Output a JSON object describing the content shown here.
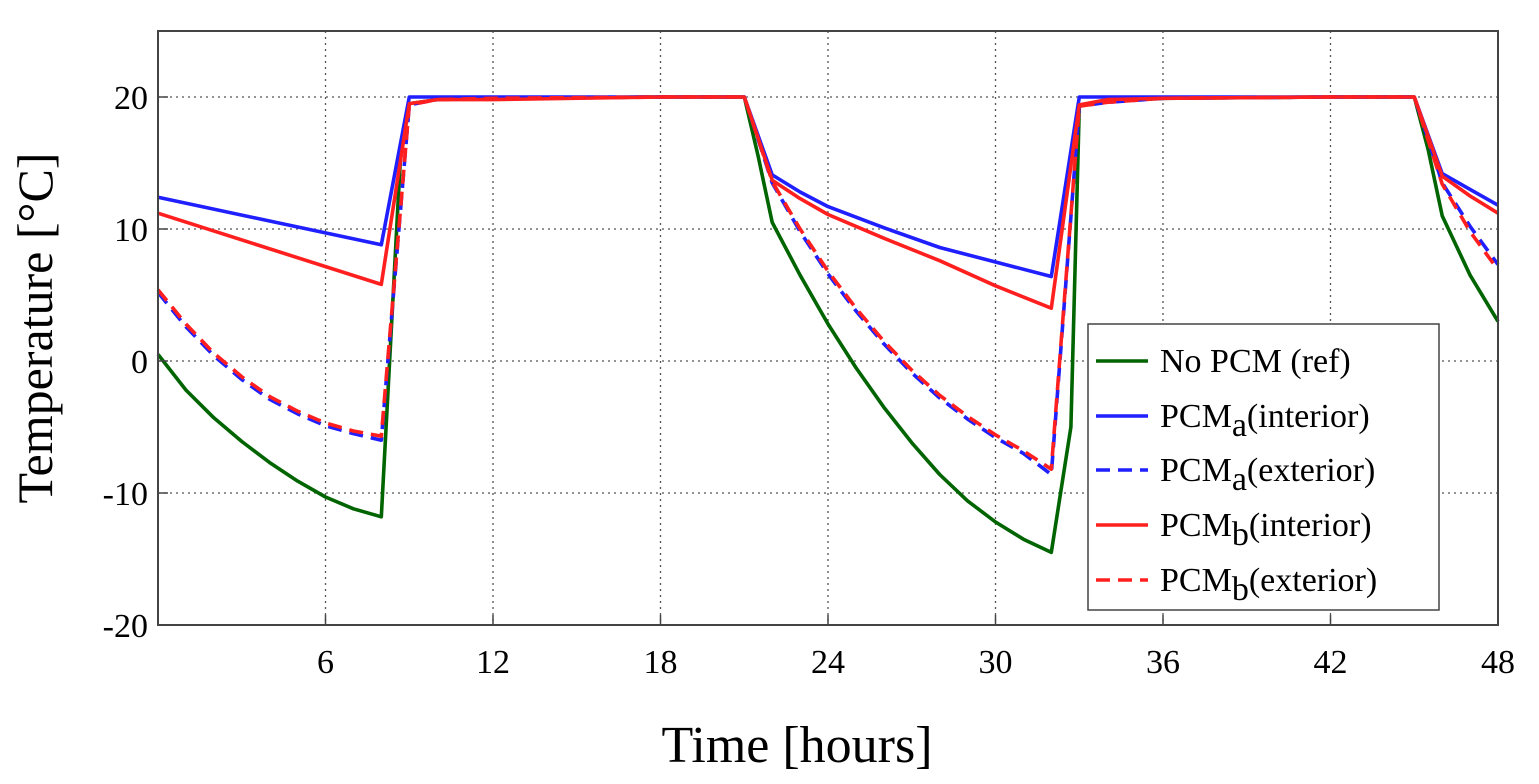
{
  "chart_data": {
    "type": "line",
    "title": "",
    "xlabel": "Time [hours]",
    "ylabel": "Temperature [°C]",
    "xlim": [
      0,
      48
    ],
    "ylim": [
      -20,
      25
    ],
    "xticks": [
      6,
      12,
      18,
      24,
      30,
      36,
      42,
      48
    ],
    "yticks": [
      -20,
      -10,
      0,
      10,
      20
    ],
    "grid": true,
    "legend_position": "lower-right",
    "series": [
      {
        "name": "No PCM (ref)",
        "legend_main": "No PCM (ref)",
        "legend_sub": "",
        "legend_rest": "",
        "color": "#006400",
        "dash": "solid",
        "points": [
          [
            0,
            0.5
          ],
          [
            1,
            -2.2
          ],
          [
            2,
            -4.3
          ],
          [
            3,
            -6.1
          ],
          [
            4,
            -7.7
          ],
          [
            5,
            -9.1
          ],
          [
            6,
            -10.3
          ],
          [
            7,
            -11.2
          ],
          [
            8,
            -11.8
          ],
          [
            8.7,
            16
          ],
          [
            9,
            19.5
          ],
          [
            10,
            19.8
          ],
          [
            12,
            19.9
          ],
          [
            18,
            20
          ],
          [
            21,
            20
          ],
          [
            21.5,
            15.5
          ],
          [
            22,
            10.5
          ],
          [
            23,
            6.5
          ],
          [
            24,
            2.8
          ],
          [
            25,
            -0.5
          ],
          [
            26,
            -3.5
          ],
          [
            27,
            -6.2
          ],
          [
            28,
            -8.6
          ],
          [
            29,
            -10.6
          ],
          [
            30,
            -12.2
          ],
          [
            31,
            -13.5
          ],
          [
            32,
            -14.5
          ],
          [
            32.7,
            -5
          ],
          [
            33,
            19.3
          ],
          [
            34,
            19.7
          ],
          [
            36,
            19.9
          ],
          [
            42,
            20
          ],
          [
            45,
            20
          ],
          [
            45.5,
            16
          ],
          [
            46,
            11
          ],
          [
            47,
            6.5
          ],
          [
            48,
            3
          ]
        ]
      },
      {
        "name": "PCMa (interior)",
        "legend_main": "PCM",
        "legend_sub": "a",
        "legend_rest": "(interior)",
        "color": "#1f1fff",
        "dash": "solid",
        "points": [
          [
            0,
            12.4
          ],
          [
            8,
            8.8
          ],
          [
            9,
            20
          ],
          [
            12,
            20
          ],
          [
            18,
            20
          ],
          [
            21,
            20
          ],
          [
            22,
            14.1
          ],
          [
            23,
            12.8
          ],
          [
            24,
            11.7
          ],
          [
            26,
            10.1
          ],
          [
            28,
            8.6
          ],
          [
            30,
            7.5
          ],
          [
            32,
            6.4
          ],
          [
            33,
            20
          ],
          [
            36,
            20
          ],
          [
            42,
            20
          ],
          [
            45,
            20
          ],
          [
            46,
            14.2
          ],
          [
            47,
            13
          ],
          [
            48,
            11.8
          ]
        ]
      },
      {
        "name": "PCMa (exterior)",
        "legend_main": "PCM",
        "legend_sub": "a",
        "legend_rest": "(exterior)",
        "color": "#1f1fff",
        "dash": "dashed",
        "points": [
          [
            0,
            5.2
          ],
          [
            1,
            2.6
          ],
          [
            2,
            0.4
          ],
          [
            3,
            -1.4
          ],
          [
            4,
            -2.9
          ],
          [
            5,
            -4.0
          ],
          [
            6,
            -4.9
          ],
          [
            7,
            -5.5
          ],
          [
            8,
            -6.0
          ],
          [
            9,
            19.4
          ],
          [
            10,
            19.8
          ],
          [
            12,
            19.9
          ],
          [
            18,
            20
          ],
          [
            21,
            20
          ],
          [
            22,
            13.5
          ],
          [
            23,
            9.8
          ],
          [
            24,
            6.6
          ],
          [
            25,
            3.8
          ],
          [
            26,
            1.3
          ],
          [
            27,
            -0.9
          ],
          [
            28,
            -2.8
          ],
          [
            29,
            -4.4
          ],
          [
            30,
            -5.8
          ],
          [
            31,
            -7.0
          ],
          [
            32,
            -8.6
          ],
          [
            33,
            19.3
          ],
          [
            34,
            19.6
          ],
          [
            36,
            19.9
          ],
          [
            42,
            20
          ],
          [
            45,
            20
          ],
          [
            46,
            13.5
          ],
          [
            47,
            10.2
          ],
          [
            48,
            7.3
          ]
        ]
      },
      {
        "name": "PCMb (interior)",
        "legend_main": "PCM",
        "legend_sub": "b",
        "legend_rest": "(interior)",
        "color": "#ff1f1f",
        "dash": "solid",
        "points": [
          [
            0,
            11.2
          ],
          [
            8,
            5.8
          ],
          [
            9,
            19.5
          ],
          [
            10,
            19.8
          ],
          [
            12,
            19.8
          ],
          [
            18,
            20
          ],
          [
            21,
            20
          ],
          [
            22,
            13.7
          ],
          [
            23,
            12.3
          ],
          [
            24,
            11.1
          ],
          [
            26,
            9.3
          ],
          [
            28,
            7.6
          ],
          [
            30,
            5.7
          ],
          [
            32,
            4.0
          ],
          [
            33,
            19.4
          ],
          [
            34,
            19.8
          ],
          [
            36,
            19.9
          ],
          [
            42,
            20
          ],
          [
            45,
            20
          ],
          [
            46,
            14
          ],
          [
            47,
            12.5
          ],
          [
            48,
            11.2
          ]
        ]
      },
      {
        "name": "PCMb (exterior)",
        "legend_main": "PCM",
        "legend_sub": "b",
        "legend_rest": "(exterior)",
        "color": "#ff1f1f",
        "dash": "dashed",
        "points": [
          [
            0,
            5.4
          ],
          [
            1,
            2.8
          ],
          [
            2,
            0.6
          ],
          [
            3,
            -1.2
          ],
          [
            4,
            -2.7
          ],
          [
            5,
            -3.8
          ],
          [
            6,
            -4.7
          ],
          [
            7,
            -5.3
          ],
          [
            8,
            -5.7
          ],
          [
            9,
            19.4
          ],
          [
            10,
            19.8
          ],
          [
            12,
            19.9
          ],
          [
            18,
            20
          ],
          [
            21,
            20
          ],
          [
            22,
            13.6
          ],
          [
            23,
            10
          ],
          [
            24,
            6.8
          ],
          [
            25,
            4.0
          ],
          [
            26,
            1.5
          ],
          [
            27,
            -0.7
          ],
          [
            28,
            -2.6
          ],
          [
            29,
            -4.2
          ],
          [
            30,
            -5.6
          ],
          [
            31,
            -6.8
          ],
          [
            32,
            -8.2
          ],
          [
            33,
            19.3
          ],
          [
            34,
            19.6
          ],
          [
            36,
            19.9
          ],
          [
            42,
            20
          ],
          [
            45,
            20
          ],
          [
            46,
            13.4
          ],
          [
            47,
            9.8
          ],
          [
            48,
            6.9
          ]
        ]
      }
    ]
  }
}
